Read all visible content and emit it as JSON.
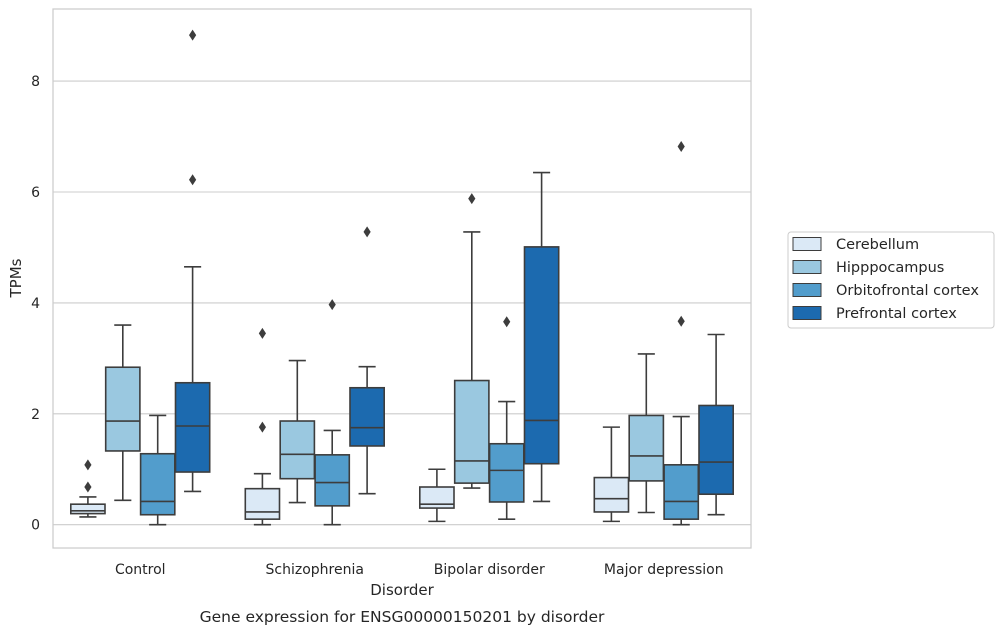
{
  "chart_data": {
    "type": "box",
    "title": "",
    "caption": "Gene expression for ENSG00000150201 by disorder",
    "xlabel": "Disorder",
    "ylabel": "TPMs",
    "ylim": [
      -0.42,
      9.3
    ],
    "yticks": [
      0,
      2,
      4,
      6,
      8
    ],
    "grid": true,
    "legend_position": "right",
    "categories": [
      "Control",
      "Schizophrenia",
      "Bipolar disorder",
      "Major depression"
    ],
    "series": [
      {
        "name": "Cerebellum",
        "color": "#dbe9f6",
        "boxes": [
          {
            "whislo": 0.14,
            "q1": 0.2,
            "med": 0.25,
            "q3": 0.37,
            "whishi": 0.5,
            "fliers": [
              0.68,
              1.08
            ]
          },
          {
            "whislo": 0.0,
            "q1": 0.1,
            "med": 0.23,
            "q3": 0.65,
            "whishi": 0.92,
            "fliers": [
              1.76,
              3.45
            ]
          },
          {
            "whislo": 0.06,
            "q1": 0.3,
            "med": 0.37,
            "q3": 0.68,
            "whishi": 1.0,
            "fliers": []
          },
          {
            "whislo": 0.06,
            "q1": 0.23,
            "med": 0.47,
            "q3": 0.85,
            "whishi": 1.76,
            "fliers": []
          }
        ]
      },
      {
        "name": "Hipppocampus",
        "color": "#9ac8e0",
        "boxes": [
          {
            "whislo": 0.44,
            "q1": 1.33,
            "med": 1.87,
            "q3": 2.84,
            "whishi": 3.6,
            "fliers": []
          },
          {
            "whislo": 0.4,
            "q1": 0.83,
            "med": 1.27,
            "q3": 1.87,
            "whishi": 2.96,
            "fliers": []
          },
          {
            "whislo": 0.66,
            "q1": 0.75,
            "med": 1.15,
            "q3": 2.6,
            "whishi": 5.28,
            "fliers": [
              5.88
            ]
          },
          {
            "whislo": 0.22,
            "q1": 0.79,
            "med": 1.24,
            "q3": 1.97,
            "whishi": 3.08,
            "fliers": []
          }
        ]
      },
      {
        "name": "Orbitofrontal cortex",
        "color": "#529dcc",
        "boxes": [
          {
            "whislo": 0.0,
            "q1": 0.18,
            "med": 0.42,
            "q3": 1.28,
            "whishi": 1.97,
            "fliers": []
          },
          {
            "whislo": 0.0,
            "q1": 0.34,
            "med": 0.76,
            "q3": 1.26,
            "whishi": 1.7,
            "fliers": [
              3.97
            ]
          },
          {
            "whislo": 0.1,
            "q1": 0.41,
            "med": 0.98,
            "q3": 1.46,
            "whishi": 2.22,
            "fliers": [
              3.66
            ]
          },
          {
            "whislo": 0.0,
            "q1": 0.1,
            "med": 0.42,
            "q3": 1.08,
            "whishi": 1.95,
            "fliers": [
              3.67,
              6.82
            ]
          }
        ]
      },
      {
        "name": "Prefrontal cortex",
        "color": "#1c6aaf",
        "boxes": [
          {
            "whislo": 0.6,
            "q1": 0.95,
            "med": 1.78,
            "q3": 2.56,
            "whishi": 4.65,
            "fliers": [
              6.22,
              8.83
            ]
          },
          {
            "whislo": 0.56,
            "q1": 1.42,
            "med": 1.75,
            "q3": 2.47,
            "whishi": 2.85,
            "fliers": [
              5.28
            ]
          },
          {
            "whislo": 0.42,
            "q1": 1.1,
            "med": 1.88,
            "q3": 5.01,
            "whishi": 6.35,
            "fliers": []
          },
          {
            "whislo": 0.18,
            "q1": 0.55,
            "med": 1.13,
            "q3": 2.15,
            "whishi": 3.43,
            "fliers": []
          }
        ]
      }
    ]
  }
}
